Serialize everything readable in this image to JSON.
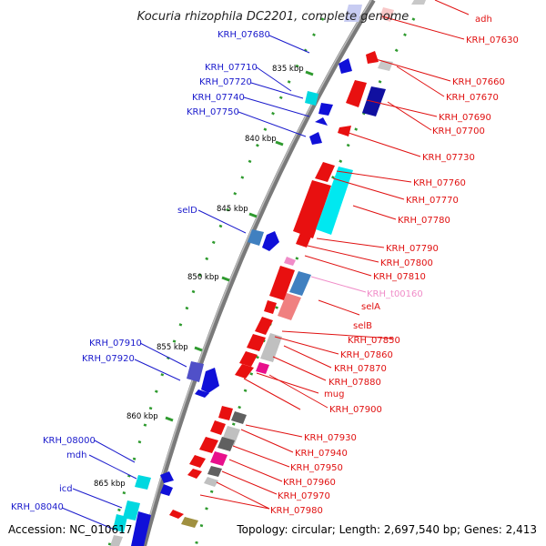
{
  "title": "Kocuria rhizophila DC2201, complete genome",
  "footer": {
    "accession": "Accession: NC_010617",
    "topology": "Topology: circular; Length: 2,697,540 bp; Genes: 2,413"
  },
  "colors": {
    "backbone": "#808080",
    "tick": "#2e9a2e",
    "left_label": "#1a1acc",
    "right_label": "#e01010",
    "trna_label": "#f08cc8"
  },
  "ruler": [
    {
      "label": "835 kbp"
    },
    {
      "label": "840 kbp"
    },
    {
      "label": "845 kbp"
    },
    {
      "label": "850 kbp"
    },
    {
      "label": "855 kbp"
    },
    {
      "label": "860 kbp"
    },
    {
      "label": "865 kbp"
    }
  ],
  "left_labels": [
    {
      "label": "KRH_07680"
    },
    {
      "label": "KRH_07710"
    },
    {
      "label": "KRH_07720"
    },
    {
      "label": "KRH_07740"
    },
    {
      "label": "KRH_07750"
    },
    {
      "label": "selD"
    },
    {
      "label": "KRH_07910"
    },
    {
      "label": "KRH_07920"
    },
    {
      "label": "KRH_08000"
    },
    {
      "label": "mdh"
    },
    {
      "label": "icd"
    },
    {
      "label": "KRH_08040"
    }
  ],
  "right_labels": [
    {
      "label": "adh"
    },
    {
      "label": "KRH_07630"
    },
    {
      "label": "KRH_07660"
    },
    {
      "label": "KRH_07670"
    },
    {
      "label": "KRH_07690"
    },
    {
      "label": "KRH_07700"
    },
    {
      "label": "KRH_07730"
    },
    {
      "label": "KRH_07760"
    },
    {
      "label": "KRH_07770"
    },
    {
      "label": "KRH_07780"
    },
    {
      "label": "KRH_07790"
    },
    {
      "label": "KRH_07800"
    },
    {
      "label": "KRH_07810"
    },
    {
      "label": "KRH_t00160"
    },
    {
      "label": "selA"
    },
    {
      "label": "selB"
    },
    {
      "label": "KRH_07850"
    },
    {
      "label": "KRH_07860"
    },
    {
      "label": "KRH_07870"
    },
    {
      "label": "KRH_07880"
    },
    {
      "label": "mug"
    },
    {
      "label": "KRH_07900"
    },
    {
      "label": "KRH_07930"
    },
    {
      "label": "KRH_07940"
    },
    {
      "label": "KRH_07950"
    },
    {
      "label": "KRH_07960"
    },
    {
      "label": "KRH_07970"
    },
    {
      "label": "KRH_07980"
    }
  ]
}
